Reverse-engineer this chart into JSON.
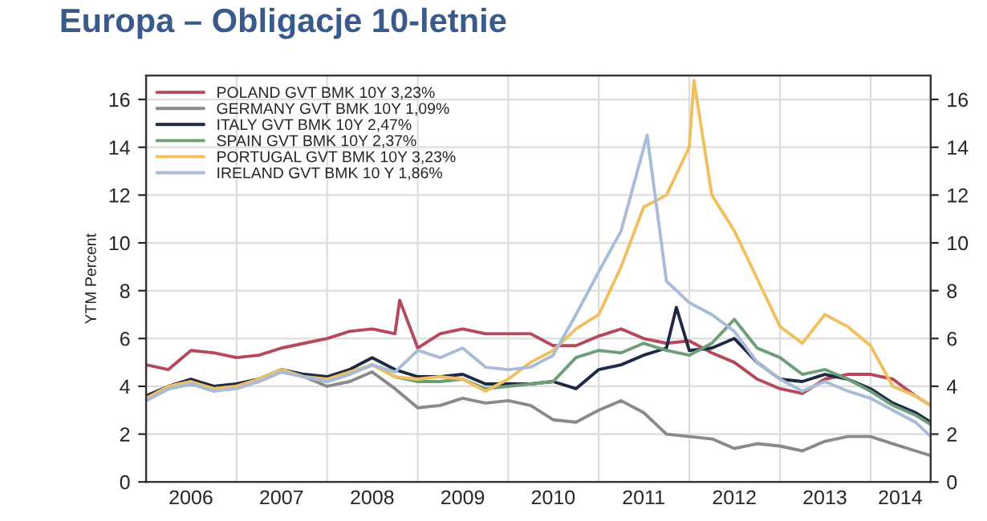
{
  "chart_data": {
    "type": "line",
    "title": "Europa – Obligacje 10-letnie",
    "ylabel": "YTM Percent",
    "x": [
      "2006-01",
      "2006-04",
      "2006-07",
      "2006-10",
      "2007-01",
      "2007-04",
      "2007-07",
      "2007-10",
      "2008-01",
      "2008-04",
      "2008-07",
      "2008-10",
      "2009-01",
      "2009-04",
      "2009-07",
      "2009-10",
      "2010-01",
      "2010-04",
      "2010-07",
      "2010-10",
      "2011-01",
      "2011-04",
      "2011-07",
      "2011-10",
      "2012-01",
      "2012-04",
      "2012-07",
      "2012-10",
      "2013-01",
      "2013-04",
      "2013-07",
      "2013-10",
      "2014-01",
      "2014-04",
      "2014-07",
      "2014-09"
    ],
    "series": [
      {
        "name": "POLAND GVT BMK 10Y 3,23%",
        "color": "#b5495b",
        "x": [
          "2006-01",
          "2006-04",
          "2006-07",
          "2006-10",
          "2007-01",
          "2007-04",
          "2007-07",
          "2007-10",
          "2008-01",
          "2008-04",
          "2008-07",
          "2008-10",
          "2008-10-20",
          "2009-01",
          "2009-04",
          "2009-07",
          "2009-10",
          "2010-01",
          "2010-04",
          "2010-07",
          "2010-10",
          "2011-01",
          "2011-04",
          "2011-07",
          "2011-10",
          "2012-01",
          "2012-04",
          "2012-07",
          "2012-10",
          "2013-01",
          "2013-04",
          "2013-07",
          "2013-10",
          "2014-01",
          "2014-04",
          "2014-07",
          "2014-09"
        ],
        "values": [
          4.9,
          4.7,
          5.5,
          5.4,
          5.2,
          5.3,
          5.6,
          5.8,
          6.0,
          6.3,
          6.4,
          6.2,
          7.6,
          5.6,
          6.2,
          6.4,
          6.2,
          6.2,
          6.2,
          5.7,
          5.7,
          6.1,
          6.4,
          6.0,
          5.8,
          5.9,
          5.4,
          5.0,
          4.3,
          3.9,
          3.7,
          4.3,
          4.5,
          4.5,
          4.3,
          3.6,
          3.2
        ]
      },
      {
        "name": "GERMANY GVT BMK 10Y 1,09%",
        "color": "#8a8a8a",
        "values": [
          3.4,
          3.9,
          4.1,
          3.8,
          4.0,
          4.2,
          4.6,
          4.4,
          4.0,
          4.2,
          4.6,
          3.9,
          3.1,
          3.2,
          3.5,
          3.3,
          3.4,
          3.2,
          2.6,
          2.5,
          3.0,
          3.4,
          2.9,
          2.0,
          1.9,
          1.8,
          1.4,
          1.6,
          1.5,
          1.3,
          1.7,
          1.9,
          1.9,
          1.6,
          1.3,
          1.1
        ]
      },
      {
        "name": "ITALY GVT BMK 10Y 2,47%",
        "color": "#1e2a44",
        "x": [
          "2006-01",
          "2006-04",
          "2006-07",
          "2006-10",
          "2007-01",
          "2007-04",
          "2007-07",
          "2007-10",
          "2008-01",
          "2008-04",
          "2008-07",
          "2008-10",
          "2009-01",
          "2009-04",
          "2009-07",
          "2009-10",
          "2010-01",
          "2010-04",
          "2010-07",
          "2010-10",
          "2011-01",
          "2011-04",
          "2011-07",
          "2011-10",
          "2011-11-10",
          "2012-01",
          "2012-04",
          "2012-07",
          "2012-10",
          "2013-01",
          "2013-04",
          "2013-07",
          "2013-10",
          "2014-01",
          "2014-04",
          "2014-07",
          "2014-09"
        ],
        "values": [
          3.6,
          4.0,
          4.3,
          4.0,
          4.1,
          4.3,
          4.7,
          4.5,
          4.4,
          4.7,
          5.2,
          4.7,
          4.4,
          4.4,
          4.5,
          4.1,
          4.1,
          4.1,
          4.2,
          3.9,
          4.7,
          4.9,
          5.3,
          5.6,
          7.3,
          5.5,
          5.6,
          6.0,
          5.0,
          4.3,
          4.2,
          4.5,
          4.3,
          3.9,
          3.3,
          2.9,
          2.5
        ]
      },
      {
        "name": "SPAIN GVT BMK 10Y 2,37%",
        "color": "#6e9e78",
        "values": [
          3.5,
          3.9,
          4.1,
          3.9,
          4.0,
          4.3,
          4.7,
          4.4,
          4.2,
          4.5,
          4.9,
          4.4,
          4.2,
          4.2,
          4.3,
          3.9,
          4.0,
          4.1,
          4.2,
          5.2,
          5.5,
          5.4,
          5.8,
          5.5,
          5.3,
          5.8,
          6.8,
          5.6,
          5.2,
          4.5,
          4.7,
          4.3,
          3.8,
          3.2,
          2.8,
          2.4
        ]
      },
      {
        "name": "PORTUGAL GVT BMK 10Y 3,23%",
        "color": "#f0c060",
        "x": [
          "2006-01",
          "2006-04",
          "2006-07",
          "2006-10",
          "2007-01",
          "2007-04",
          "2007-07",
          "2007-10",
          "2008-01",
          "2008-04",
          "2008-07",
          "2008-10",
          "2009-01",
          "2009-04",
          "2009-07",
          "2009-10",
          "2010-01",
          "2010-04",
          "2010-07",
          "2010-10",
          "2011-01",
          "2011-04",
          "2011-07",
          "2011-10",
          "2012-01",
          "2012-01-20",
          "2012-04",
          "2012-07",
          "2012-10",
          "2013-01",
          "2013-04",
          "2013-07",
          "2013-10",
          "2014-01",
          "2014-04",
          "2014-07",
          "2014-09"
        ],
        "values": [
          3.5,
          4.0,
          4.2,
          3.9,
          4.0,
          4.3,
          4.7,
          4.4,
          4.3,
          4.6,
          4.9,
          4.4,
          4.3,
          4.4,
          4.3,
          3.8,
          4.3,
          5.0,
          5.5,
          6.4,
          7.0,
          9.0,
          11.5,
          12.0,
          14.0,
          16.8,
          12.0,
          10.5,
          8.5,
          6.5,
          5.8,
          7.0,
          6.5,
          5.7,
          4.0,
          3.6,
          3.2
        ]
      },
      {
        "name": "IRELAND GVT BMK 10 Y 1,86%",
        "color": "#a8bcd8",
        "x": [
          "2006-01",
          "2006-04",
          "2006-07",
          "2006-10",
          "2007-01",
          "2007-04",
          "2007-07",
          "2007-10",
          "2008-01",
          "2008-04",
          "2008-07",
          "2008-10",
          "2009-01",
          "2009-04",
          "2009-07",
          "2009-10",
          "2010-01",
          "2010-04",
          "2010-07",
          "2010-10",
          "2011-01",
          "2011-04",
          "2011-07-15",
          "2011-10",
          "2012-01",
          "2012-04",
          "2012-07",
          "2012-10",
          "2013-01",
          "2013-04",
          "2013-07",
          "2013-10",
          "2014-01",
          "2014-04",
          "2014-07",
          "2014-09"
        ],
        "values": [
          3.4,
          3.9,
          4.1,
          3.8,
          3.9,
          4.2,
          4.6,
          4.4,
          4.2,
          4.5,
          4.9,
          4.6,
          5.5,
          5.2,
          5.6,
          4.8,
          4.7,
          4.8,
          5.3,
          7.0,
          8.8,
          10.5,
          14.5,
          8.4,
          7.5,
          7.0,
          6.3,
          5.0,
          4.3,
          3.8,
          4.2,
          3.8,
          3.5,
          3.0,
          2.5,
          1.9
        ]
      }
    ],
    "xlim": [
      "2006-01",
      "2014-09"
    ],
    "xticks": [
      {
        "value": "2006-01",
        "label": null
      },
      {
        "value": "2006-07",
        "label": "2006"
      },
      {
        "value": "2007-01",
        "label": null
      },
      {
        "value": "2007-07",
        "label": "2007"
      },
      {
        "value": "2008-01",
        "label": null
      },
      {
        "value": "2008-07",
        "label": "2008"
      },
      {
        "value": "2009-01",
        "label": null
      },
      {
        "value": "2009-07",
        "label": "2009"
      },
      {
        "value": "2010-01",
        "label": null
      },
      {
        "value": "2010-07",
        "label": "2010"
      },
      {
        "value": "2011-01",
        "label": null
      },
      {
        "value": "2011-07",
        "label": "2011"
      },
      {
        "value": "2012-01",
        "label": null
      },
      {
        "value": "2012-07",
        "label": "2012"
      },
      {
        "value": "2013-01",
        "label": null
      },
      {
        "value": "2013-07",
        "label": "2013"
      },
      {
        "value": "2014-01",
        "label": null
      },
      {
        "value": "2014-05",
        "label": "2014"
      }
    ],
    "ylim": [
      0,
      17
    ],
    "yticks": [
      0,
      2,
      4,
      6,
      8,
      10,
      12,
      14,
      16
    ],
    "y2lim": [
      0,
      17
    ],
    "y2ticks": [
      0,
      2,
      4,
      6,
      8,
      10,
      12,
      14,
      16
    ],
    "grid": true,
    "legend": "top left",
    "line_style": "solid",
    "marker": "none"
  }
}
